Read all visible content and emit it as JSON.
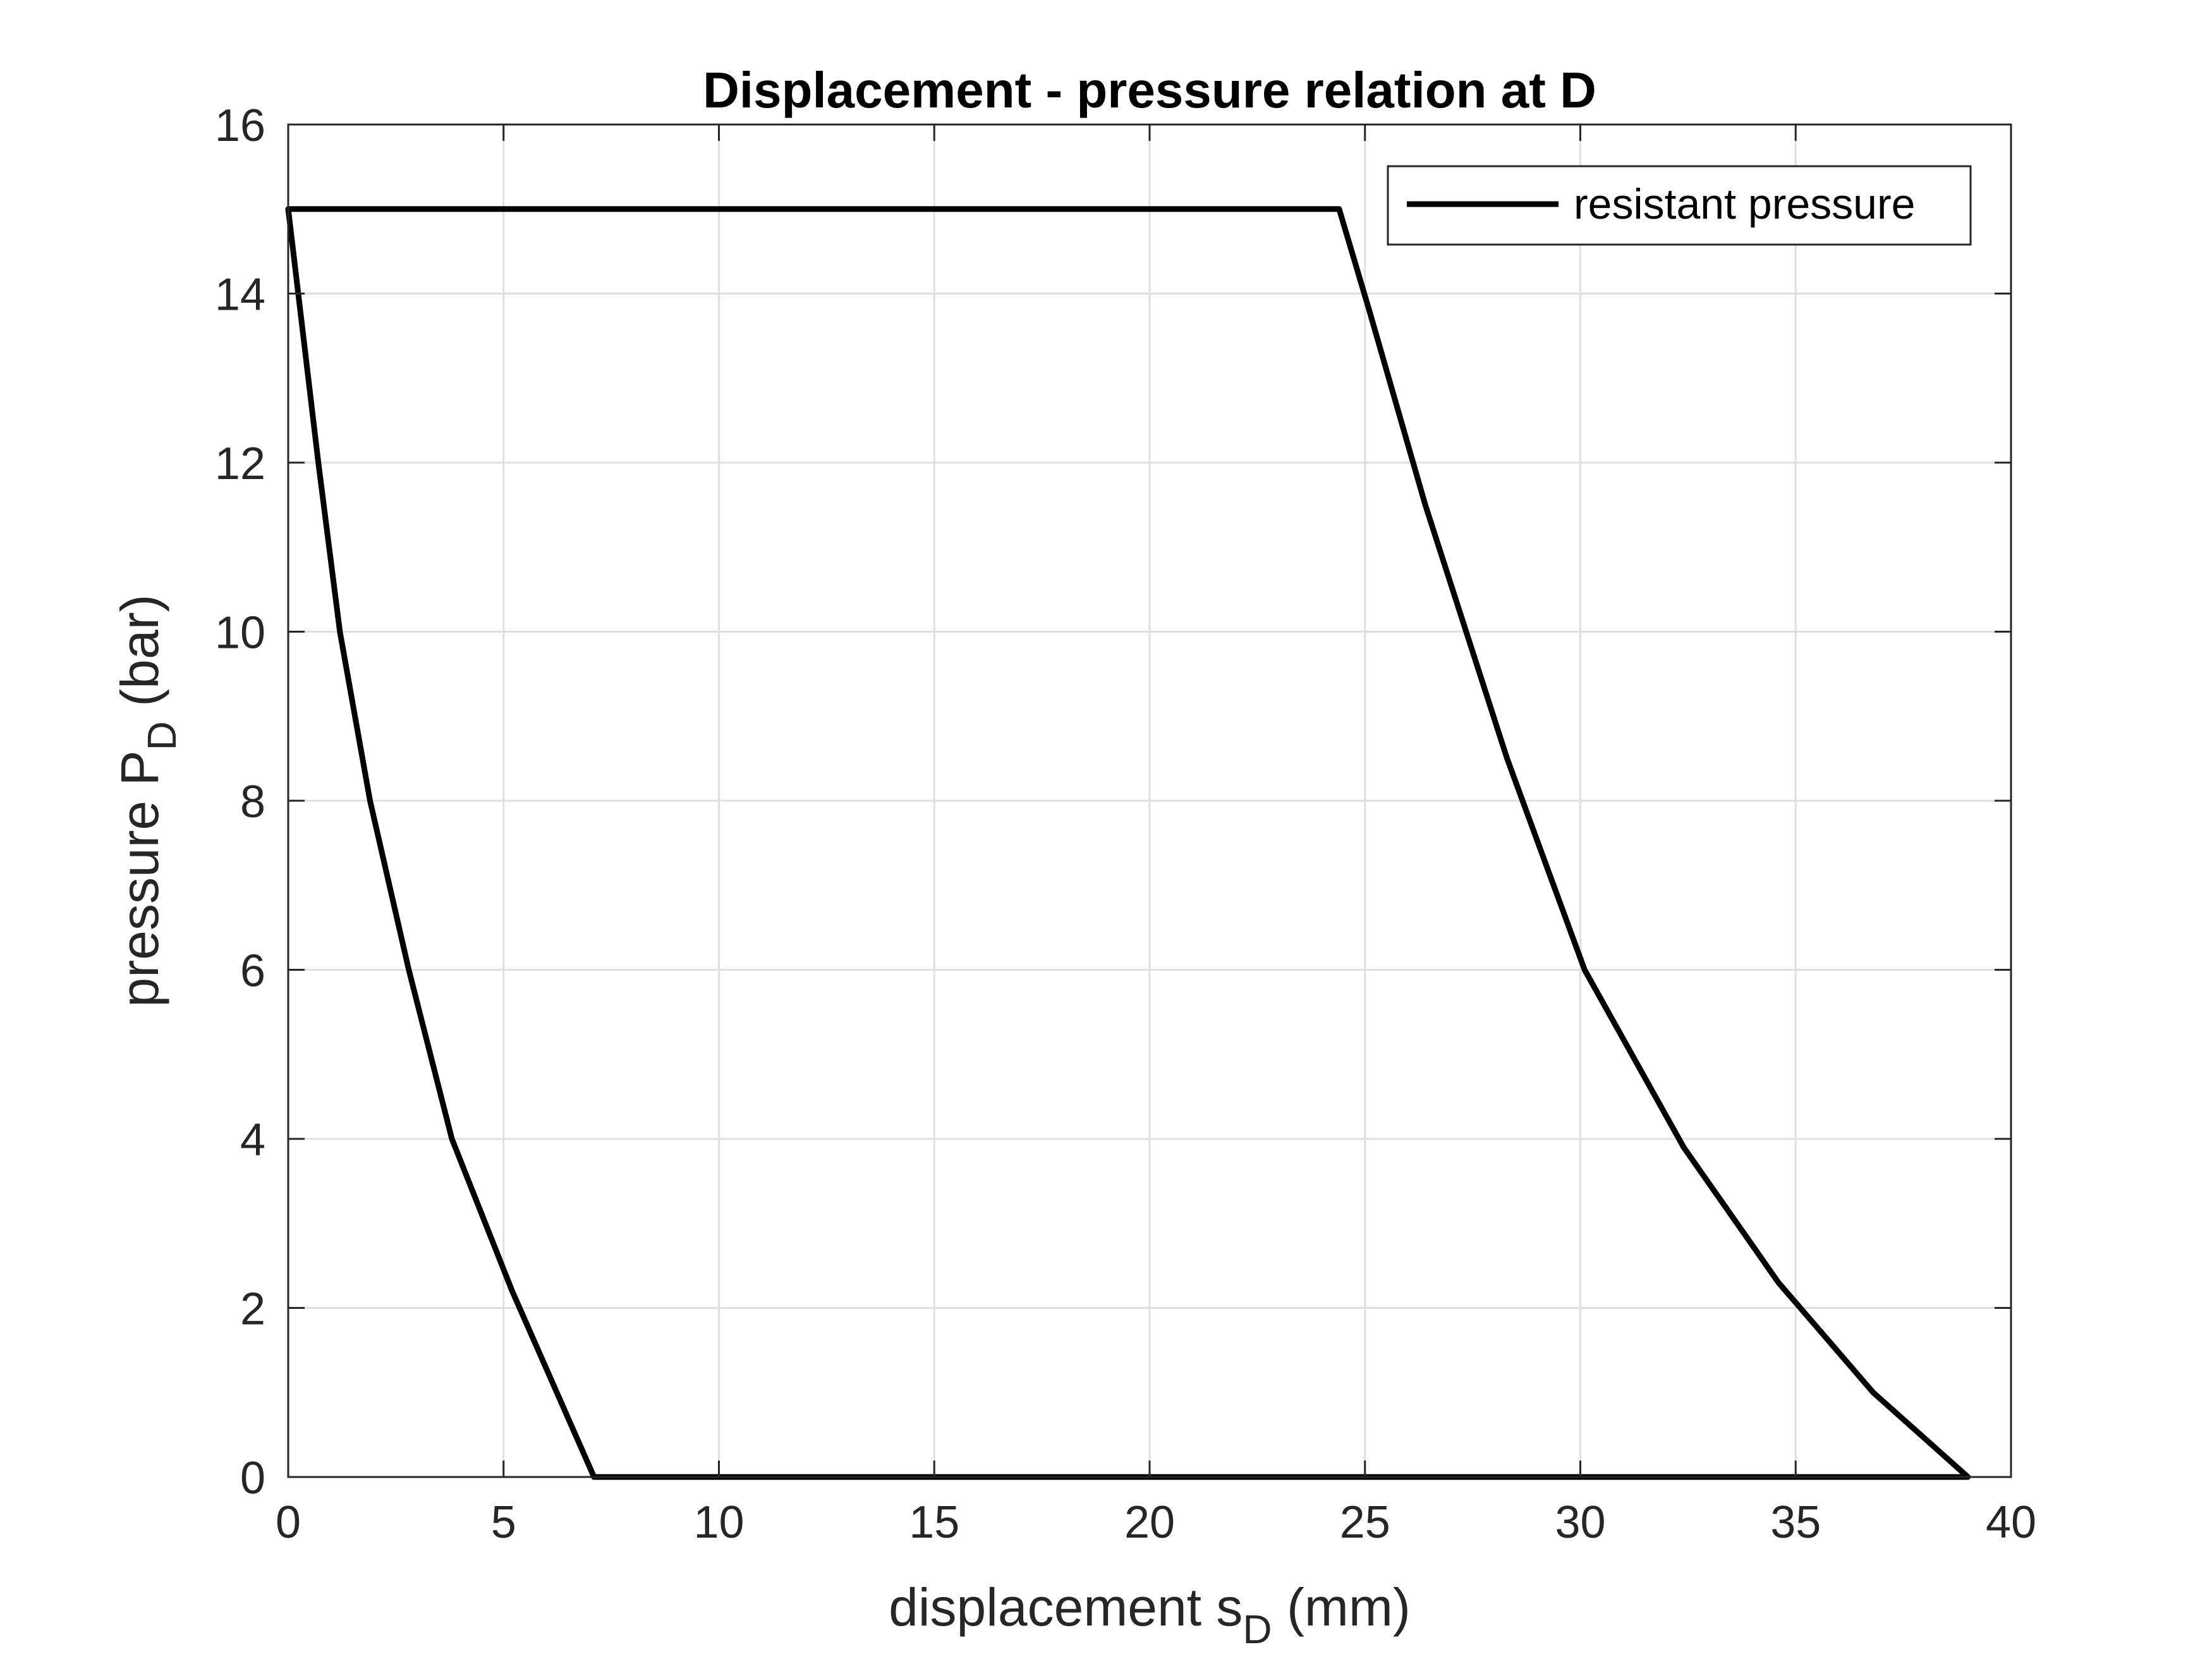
{
  "chart_data": {
    "type": "line",
    "title": "Displacement - pressure relation at D",
    "xlabel": {
      "main": "displacement s",
      "sub": "D",
      "unit": " (mm)"
    },
    "ylabel": {
      "main": "pressure P",
      "sub": "D",
      "unit": " (bar)"
    },
    "xlim": [
      0,
      40
    ],
    "ylim": [
      0,
      16
    ],
    "xticks": [
      "0",
      "5",
      "10",
      "15",
      "20",
      "25",
      "30",
      "35",
      "40"
    ],
    "yticks": [
      "0",
      "2",
      "4",
      "6",
      "8",
      "10",
      "12",
      "14",
      "16"
    ],
    "grid": true,
    "legend": {
      "placement": "top-right",
      "entries": [
        "resistant pressure"
      ]
    },
    "series": [
      {
        "name": "resistant pressure",
        "color": "#000000",
        "points": [
          [
            0,
            15
          ],
          [
            0.7,
            12
          ],
          [
            1.2,
            10
          ],
          [
            1.9,
            8
          ],
          [
            2.8,
            6
          ],
          [
            3.8,
            4
          ],
          [
            5.2,
            2.2
          ],
          [
            7.1,
            0
          ],
          [
            39.0,
            0
          ],
          [
            36.8,
            1.0
          ],
          [
            34.6,
            2.3
          ],
          [
            32.4,
            3.9
          ],
          [
            30.1,
            6.0
          ],
          [
            28.3,
            8.5
          ],
          [
            26.4,
            11.5
          ],
          [
            25.1,
            13.8
          ],
          [
            24.4,
            15
          ],
          [
            0,
            15
          ]
        ]
      }
    ]
  }
}
